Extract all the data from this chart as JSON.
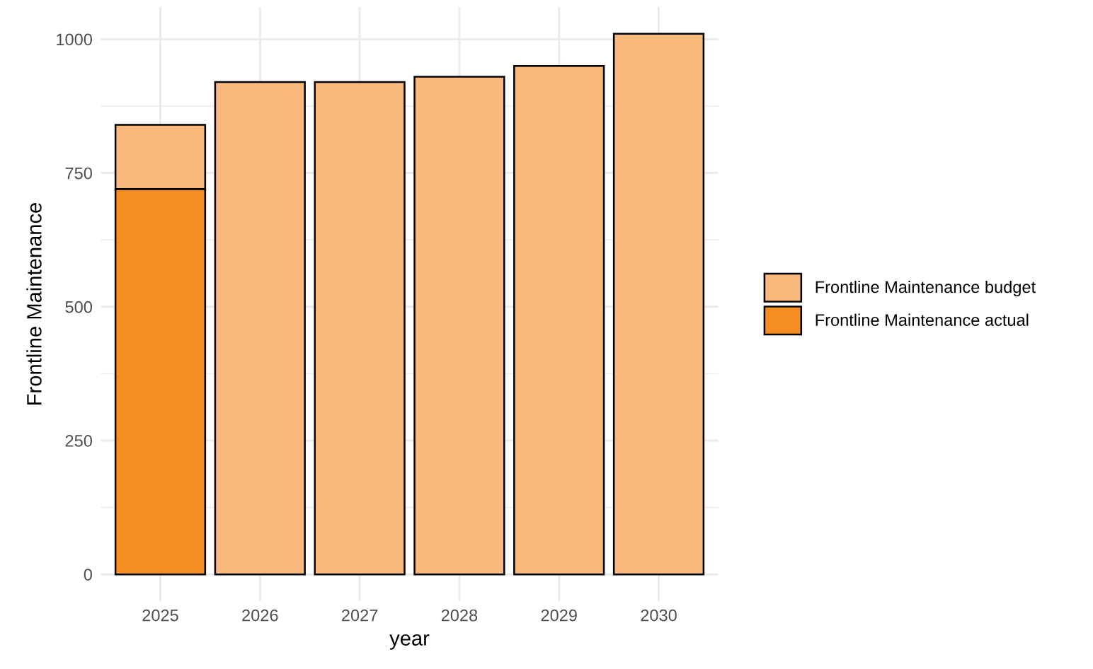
{
  "chart_data": {
    "type": "bar",
    "xlabel": "year",
    "ylabel": "Frontline Maintenance",
    "categories": [
      "2025",
      "2026",
      "2027",
      "2028",
      "2029",
      "2030"
    ],
    "stacked": true,
    "series": [
      {
        "name": "Frontline Maintenance actual",
        "color": "#f58d22",
        "values": [
          720,
          null,
          null,
          null,
          null,
          null
        ]
      },
      {
        "name": "Frontline Maintenance budget",
        "color": "#f9b97c",
        "values": [
          120,
          920,
          920,
          930,
          950,
          1010
        ]
      }
    ],
    "ylim": [
      -50,
      1060
    ],
    "yticks": [
      0,
      250,
      500,
      750,
      1000
    ],
    "grid": true,
    "legend": "right"
  }
}
